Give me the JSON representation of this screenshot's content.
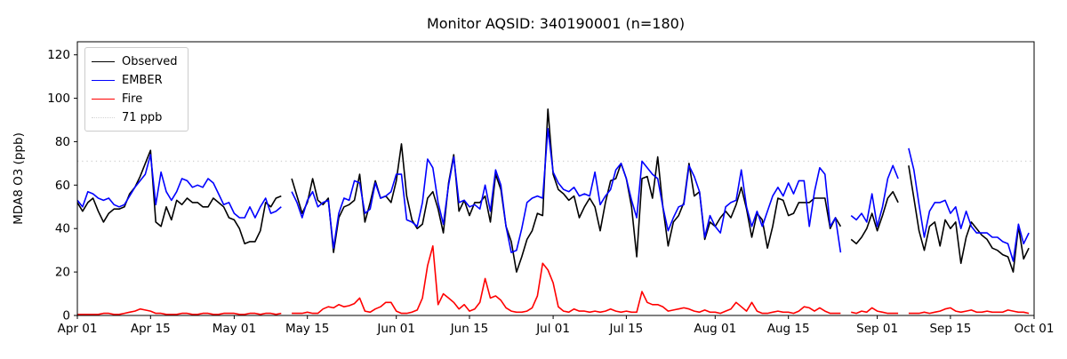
{
  "title": "Monitor AQSID: 340190001 (n=180)",
  "legend": {
    "items": [
      {
        "label": "Observed"
      },
      {
        "label": "EMBER"
      },
      {
        "label": "Fire"
      },
      {
        "label": "71 ppb"
      }
    ]
  },
  "chart_data": {
    "type": "line",
    "title": "Monitor AQSID: 340190001 (n=180)",
    "xlabel": "",
    "ylabel": "MDA8 O3 (ppb)",
    "ylim": [
      0,
      126
    ],
    "y_ticks": [
      0,
      20,
      40,
      60,
      80,
      100,
      120
    ],
    "grid": false,
    "legend_position": "upper left",
    "x_days_total": 183,
    "x_start_label": "Apr 01",
    "x_end_label": "Oct 01",
    "x_ticks": [
      {
        "day": 0,
        "label": "Apr 01"
      },
      {
        "day": 14,
        "label": "Apr 15"
      },
      {
        "day": 30,
        "label": "May 01"
      },
      {
        "day": 44,
        "label": "May 15"
      },
      {
        "day": 61,
        "label": "Jun 01"
      },
      {
        "day": 75,
        "label": "Jun 15"
      },
      {
        "day": 91,
        "label": "Jul 01"
      },
      {
        "day": 105,
        "label": "Jul 15"
      },
      {
        "day": 122,
        "label": "Aug 01"
      },
      {
        "day": 136,
        "label": "Aug 15"
      },
      {
        "day": 153,
        "label": "Sep 01"
      },
      {
        "day": 167,
        "label": "Sep 15"
      },
      {
        "day": 183,
        "label": "Oct 01"
      }
    ],
    "threshold": {
      "value": 71,
      "label": "71 ppb",
      "color": "#d3d3d3",
      "style": "dotted"
    },
    "series": [
      {
        "name": "Observed",
        "color": "#000000",
        "values": [
          52,
          48,
          52,
          54,
          48,
          43,
          47,
          49,
          49,
          50,
          56,
          59,
          64,
          70,
          76,
          43,
          41,
          50,
          44,
          53,
          51,
          54,
          52,
          52,
          50,
          50,
          54,
          52,
          50,
          45,
          44,
          40,
          33,
          34,
          34,
          39,
          52,
          50,
          54,
          55,
          null,
          63,
          55,
          47,
          52,
          63,
          53,
          51,
          54,
          29,
          45,
          50,
          51,
          53,
          65,
          43,
          52,
          62,
          54,
          55,
          52,
          62,
          79,
          55,
          44,
          40,
          42,
          54,
          57,
          49,
          38,
          61,
          74,
          48,
          53,
          46,
          52,
          52,
          55,
          43,
          65,
          58,
          41,
          34,
          20,
          27,
          35,
          39,
          47,
          46,
          95,
          65,
          58,
          56,
          53,
          55,
          45,
          50,
          54,
          50,
          39,
          52,
          62,
          63,
          70,
          63,
          50,
          27,
          63,
          64,
          54,
          73,
          50,
          32,
          43,
          46,
          52,
          70,
          55,
          57,
          35,
          43,
          41,
          45,
          48,
          45,
          51,
          59,
          49,
          36,
          47,
          44,
          31,
          41,
          54,
          53,
          46,
          47,
          52,
          52,
          52,
          54,
          54,
          54,
          40,
          45,
          41,
          null,
          35,
          33,
          36,
          40,
          47,
          39,
          46,
          54,
          57,
          52,
          null,
          69,
          54,
          39,
          30,
          41,
          43,
          32,
          44,
          40,
          43,
          24,
          36,
          43,
          40,
          37,
          35,
          31,
          30,
          28,
          27,
          20,
          41,
          26,
          31
        ]
      },
      {
        "name": "EMBER",
        "color": "#0000ff",
        "values": [
          53,
          50,
          57,
          56,
          54,
          53,
          54,
          51,
          50,
          51,
          55,
          59,
          62,
          65,
          74,
          51,
          66,
          57,
          53,
          57,
          63,
          62,
          59,
          60,
          59,
          63,
          61,
          56,
          51,
          52,
          47,
          45,
          45,
          50,
          45,
          50,
          54,
          47,
          48,
          50,
          null,
          57,
          52,
          45,
          53,
          57,
          50,
          52,
          53,
          31,
          47,
          54,
          53,
          62,
          61,
          47,
          49,
          61,
          54,
          55,
          57,
          65,
          65,
          44,
          43,
          41,
          52,
          72,
          68,
          52,
          42,
          60,
          73,
          52,
          53,
          50,
          51,
          49,
          60,
          48,
          67,
          60,
          41,
          29,
          30,
          40,
          52,
          54,
          55,
          54,
          86,
          66,
          61,
          58,
          57,
          59,
          55,
          56,
          55,
          66,
          51,
          55,
          58,
          67,
          70,
          63,
          53,
          45,
          71,
          68,
          65,
          63,
          50,
          39,
          45,
          50,
          51,
          69,
          64,
          57,
          36,
          46,
          41,
          38,
          50,
          52,
          53,
          67,
          50,
          41,
          48,
          41,
          48,
          55,
          59,
          55,
          61,
          56,
          62,
          62,
          41,
          57,
          68,
          65,
          41,
          45,
          29,
          null,
          46,
          44,
          47,
          43,
          56,
          41,
          50,
          63,
          69,
          63,
          null,
          77,
          67,
          51,
          36,
          48,
          52,
          52,
          53,
          47,
          50,
          40,
          48,
          41,
          38,
          38,
          38,
          36,
          36,
          34,
          33,
          25,
          42,
          33,
          38
        ]
      },
      {
        "name": "Fire",
        "color": "#ff0000",
        "values": [
          0.5,
          0.5,
          0.5,
          0.5,
          0.5,
          1,
          1,
          0.5,
          0.5,
          1,
          1.5,
          2,
          3,
          2.5,
          2,
          1,
          1,
          0.5,
          0.5,
          0.5,
          1,
          1,
          0.5,
          0.5,
          1,
          1,
          0.5,
          0.5,
          1,
          1,
          1,
          0.5,
          0.5,
          1,
          1,
          0.5,
          1,
          1,
          0.5,
          1,
          null,
          1,
          1,
          1,
          1.5,
          1,
          1,
          3,
          4,
          3.5,
          5,
          4,
          4.5,
          5.5,
          8,
          2,
          1.5,
          3,
          4,
          6,
          6,
          2,
          1,
          1,
          1.5,
          2.5,
          8,
          23,
          32,
          5,
          10,
          8,
          6,
          3,
          5,
          2,
          3,
          6,
          17,
          8,
          9,
          7,
          3.5,
          2,
          1.5,
          1.5,
          2,
          3.5,
          9,
          24,
          21,
          15,
          4,
          2,
          1.5,
          3,
          2,
          2,
          1.5,
          2,
          1.5,
          2,
          3,
          2,
          1.5,
          2,
          1.5,
          1.5,
          11,
          6,
          5,
          5,
          4,
          2,
          2.5,
          3,
          3.5,
          3,
          2,
          1.5,
          2.5,
          1.5,
          1.5,
          1,
          2,
          3,
          6,
          4,
          2,
          6,
          2,
          1,
          1,
          1.5,
          2,
          1.5,
          1.5,
          1,
          2,
          4,
          3.5,
          2,
          3.5,
          2,
          1,
          1,
          1,
          null,
          1.5,
          1,
          2,
          1.5,
          3.5,
          2,
          1.5,
          1,
          1,
          1,
          null,
          1,
          1,
          1,
          1.5,
          1,
          1.5,
          2,
          3,
          3.5,
          2,
          1.5,
          2,
          2.5,
          1.5,
          1.5,
          2,
          1.5,
          1.5,
          1.5,
          2.5,
          2,
          1.5,
          1.5,
          1
        ]
      }
    ]
  }
}
